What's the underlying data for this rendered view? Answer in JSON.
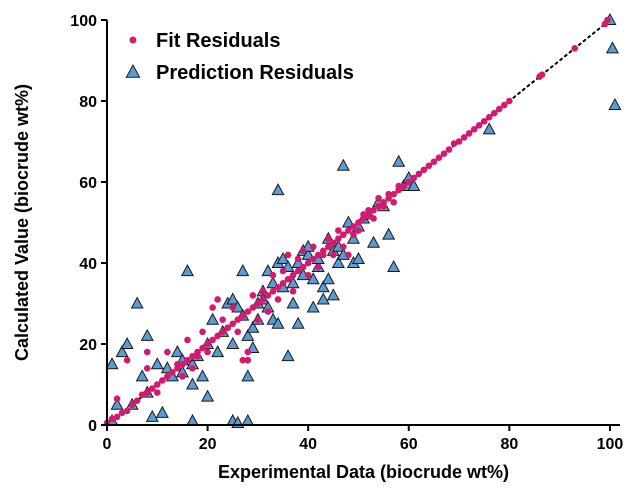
{
  "chart_data": {
    "type": "scatter",
    "xlabel": "Experimental Data (biocrude wt%)",
    "ylabel": "Calculated Value (biocrude wt%)",
    "xlim": [
      0,
      102
    ],
    "ylim": [
      0,
      100
    ],
    "xticks": [
      "0",
      "20",
      "40",
      "60",
      "80",
      "100"
    ],
    "yticks": [
      "0",
      "20",
      "40",
      "60",
      "80",
      "100"
    ],
    "legend_position": "top-left",
    "grid": false,
    "reference_line": {
      "style": "dotted",
      "from": [
        0,
        0
      ],
      "to": [
        100,
        100
      ]
    },
    "series": [
      {
        "name": "Fit Residuals",
        "marker": "circle",
        "color": "#d6186e",
        "points": [
          [
            0,
            0.5
          ],
          [
            1,
            1.5
          ],
          [
            2,
            2
          ],
          [
            3,
            3
          ],
          [
            4,
            3.5
          ],
          [
            5,
            5
          ],
          [
            6,
            6
          ],
          [
            7,
            7.5
          ],
          [
            8,
            8
          ],
          [
            9,
            9
          ],
          [
            10,
            10
          ],
          [
            11,
            11
          ],
          [
            12,
            12
          ],
          [
            13,
            13
          ],
          [
            14,
            14
          ],
          [
            15,
            15
          ],
          [
            16,
            16
          ],
          [
            17,
            17
          ],
          [
            18,
            18
          ],
          [
            19,
            19
          ],
          [
            20,
            20
          ],
          [
            21,
            21
          ],
          [
            22,
            22
          ],
          [
            23,
            23
          ],
          [
            24,
            24
          ],
          [
            25,
            25
          ],
          [
            26,
            26
          ],
          [
            27,
            27
          ],
          [
            28,
            28
          ],
          [
            29,
            29
          ],
          [
            30,
            30
          ],
          [
            31,
            31
          ],
          [
            32,
            32
          ],
          [
            33,
            33
          ],
          [
            34,
            34
          ],
          [
            35,
            35
          ],
          [
            36,
            36
          ],
          [
            37,
            37
          ],
          [
            38,
            38
          ],
          [
            39,
            39
          ],
          [
            40,
            40
          ],
          [
            41,
            41
          ],
          [
            42,
            42
          ],
          [
            43,
            43
          ],
          [
            44,
            44
          ],
          [
            45,
            45
          ],
          [
            46,
            46
          ],
          [
            47,
            47
          ],
          [
            48,
            48
          ],
          [
            49,
            49
          ],
          [
            50,
            50
          ],
          [
            51,
            51
          ],
          [
            52,
            52
          ],
          [
            53,
            53
          ],
          [
            54,
            54
          ],
          [
            55,
            55
          ],
          [
            56,
            56
          ],
          [
            57,
            57
          ],
          [
            58,
            58
          ],
          [
            59,
            59
          ],
          [
            60,
            60
          ],
          [
            61,
            61
          ],
          [
            62,
            62
          ],
          [
            63,
            63
          ],
          [
            64,
            64
          ],
          [
            65,
            65
          ],
          [
            66,
            66
          ],
          [
            67,
            67
          ],
          [
            68,
            68
          ],
          [
            69,
            69.5
          ],
          [
            70,
            70
          ],
          [
            71,
            71
          ],
          [
            72,
            72
          ],
          [
            73,
            73
          ],
          [
            74,
            74
          ],
          [
            75,
            75
          ],
          [
            76,
            76
          ],
          [
            77,
            77
          ],
          [
            78,
            78
          ],
          [
            79,
            79
          ],
          [
            80,
            80
          ],
          [
            86,
            86
          ],
          [
            86.5,
            86.5
          ],
          [
            93,
            93
          ],
          [
            99,
            99
          ],
          [
            99.5,
            100
          ],
          [
            2,
            6.5
          ],
          [
            4,
            16
          ],
          [
            8,
            18
          ],
          [
            8,
            14
          ],
          [
            10,
            8
          ],
          [
            12,
            18
          ],
          [
            14,
            15
          ],
          [
            15,
            12
          ],
          [
            16,
            21
          ],
          [
            17,
            14
          ],
          [
            18,
            17
          ],
          [
            19,
            23
          ],
          [
            20,
            18
          ],
          [
            21,
            29
          ],
          [
            22,
            31
          ],
          [
            23,
            26
          ],
          [
            24,
            24
          ],
          [
            25,
            29
          ],
          [
            26,
            23
          ],
          [
            27,
            16
          ],
          [
            28,
            18
          ],
          [
            28,
            16
          ],
          [
            29,
            32
          ],
          [
            30,
            26
          ],
          [
            31,
            33
          ],
          [
            32,
            28
          ],
          [
            33,
            37
          ],
          [
            34,
            31
          ],
          [
            35,
            38
          ],
          [
            36,
            42
          ],
          [
            37,
            33
          ],
          [
            38,
            41
          ],
          [
            39,
            43
          ],
          [
            40,
            37
          ],
          [
            41,
            44
          ],
          [
            42,
            39
          ],
          [
            43,
            42
          ],
          [
            44,
            46
          ],
          [
            45,
            42
          ],
          [
            46,
            48
          ],
          [
            47,
            44
          ],
          [
            48,
            42
          ],
          [
            49,
            47
          ],
          [
            50,
            48
          ],
          [
            51,
            52
          ],
          [
            52,
            53
          ],
          [
            53,
            51
          ],
          [
            54,
            56
          ],
          [
            55,
            54
          ],
          [
            56,
            57
          ],
          [
            57,
            55
          ],
          [
            58,
            59
          ]
        ]
      },
      {
        "name": "Prediction Residuals",
        "marker": "triangle",
        "color": "#5b9bd5",
        "points": [
          [
            1,
            1
          ],
          [
            1,
            15
          ],
          [
            2,
            5
          ],
          [
            3,
            18
          ],
          [
            4,
            20
          ],
          [
            5,
            5
          ],
          [
            6,
            30
          ],
          [
            7,
            12
          ],
          [
            8,
            22
          ],
          [
            8,
            8
          ],
          [
            9,
            2
          ],
          [
            10,
            15
          ],
          [
            11,
            3
          ],
          [
            12,
            14
          ],
          [
            13,
            12
          ],
          [
            14,
            18
          ],
          [
            15,
            16
          ],
          [
            15,
            13
          ],
          [
            16,
            38
          ],
          [
            17,
            10
          ],
          [
            17,
            15
          ],
          [
            18,
            17
          ],
          [
            19,
            12
          ],
          [
            20,
            20
          ],
          [
            20,
            7
          ],
          [
            21,
            26
          ],
          [
            22,
            18
          ],
          [
            23,
            23
          ],
          [
            24,
            30
          ],
          [
            25,
            31
          ],
          [
            25,
            20
          ],
          [
            26,
            29
          ],
          [
            27,
            27
          ],
          [
            27,
            38
          ],
          [
            28,
            22
          ],
          [
            28,
            12
          ],
          [
            29,
            24
          ],
          [
            29,
            19
          ],
          [
            30,
            26
          ],
          [
            30,
            30
          ],
          [
            31,
            33
          ],
          [
            31,
            31
          ],
          [
            32,
            29
          ],
          [
            32,
            38
          ],
          [
            33,
            35
          ],
          [
            33,
            26
          ],
          [
            34,
            25
          ],
          [
            34,
            58
          ],
          [
            34,
            40
          ],
          [
            35,
            41
          ],
          [
            35,
            34
          ],
          [
            36,
            17
          ],
          [
            36,
            39
          ],
          [
            37,
            30
          ],
          [
            37,
            35
          ],
          [
            38,
            40
          ],
          [
            38,
            25
          ],
          [
            39,
            37
          ],
          [
            39,
            43
          ],
          [
            40,
            42
          ],
          [
            40,
            44
          ],
          [
            41,
            36
          ],
          [
            41,
            29
          ],
          [
            42,
            39
          ],
          [
            42,
            41
          ],
          [
            43,
            34
          ],
          [
            43,
            31
          ],
          [
            44,
            46
          ],
          [
            44,
            36
          ],
          [
            45,
            43
          ],
          [
            45,
            32
          ],
          [
            46,
            40
          ],
          [
            46,
            44
          ],
          [
            47,
            64
          ],
          [
            47,
            42
          ],
          [
            48,
            50
          ],
          [
            49,
            46
          ],
          [
            49,
            40
          ],
          [
            50,
            49
          ],
          [
            50,
            41
          ],
          [
            51,
            51
          ],
          [
            52,
            52
          ],
          [
            53,
            45
          ],
          [
            54,
            55
          ],
          [
            55,
            54
          ],
          [
            56,
            47
          ],
          [
            57,
            39
          ],
          [
            58,
            65
          ],
          [
            59,
            59
          ],
          [
            60,
            61
          ],
          [
            60,
            59
          ],
          [
            61,
            59
          ],
          [
            76,
            73
          ],
          [
            100,
            100
          ],
          [
            100.5,
            93
          ],
          [
            101,
            79
          ],
          [
            17,
            1
          ],
          [
            25,
            1
          ],
          [
            28,
            1
          ],
          [
            26,
            0.5
          ]
        ]
      }
    ]
  }
}
